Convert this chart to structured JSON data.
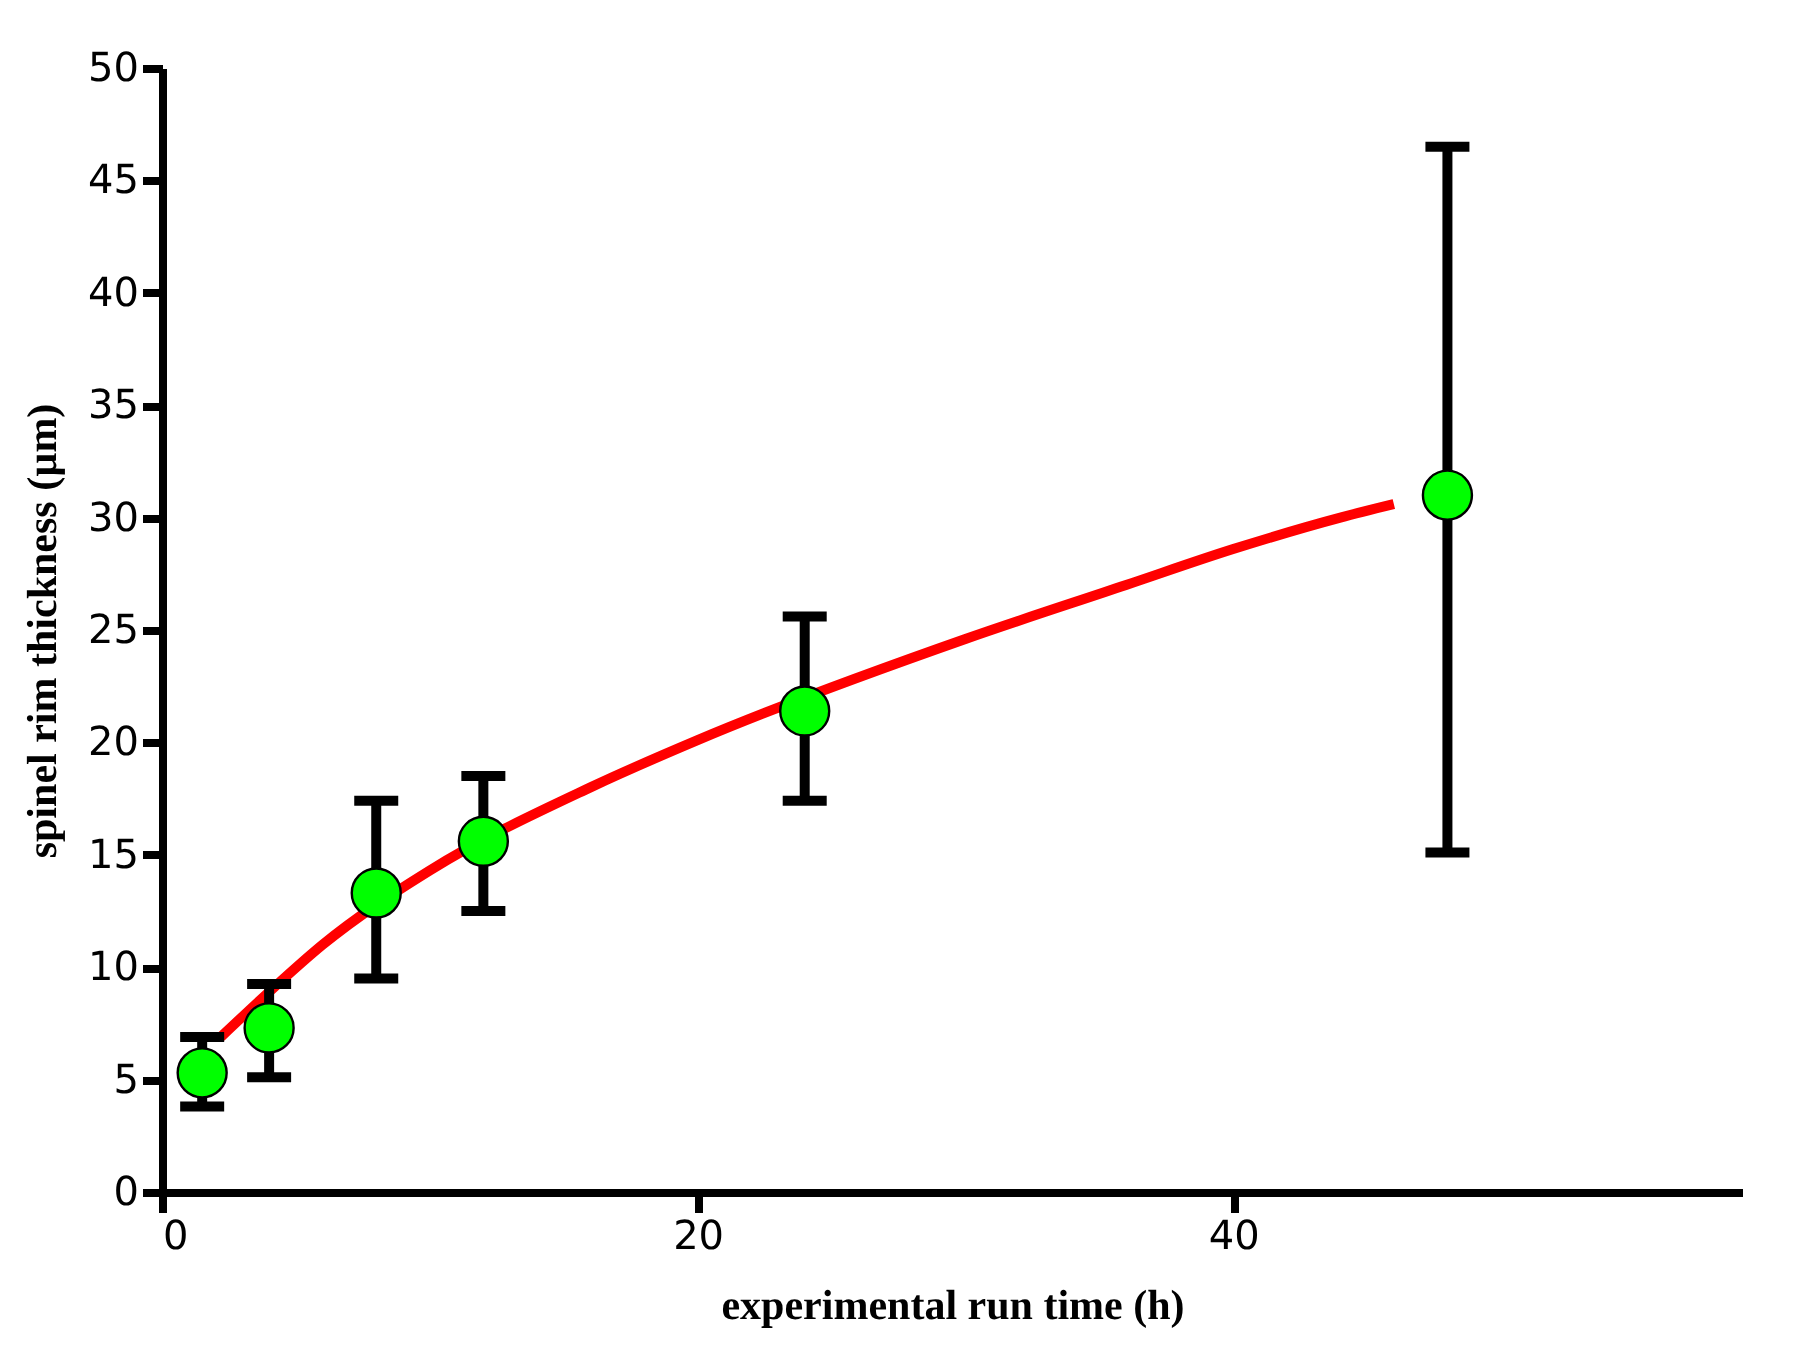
{
  "chart_data": {
    "type": "scatter",
    "xlabel": "experimental run time (h)",
    "ylabel": "spinel rim thickness (µm)",
    "xlim": [
      0,
      59
    ],
    "xticks": [
      0,
      20,
      40
    ],
    "ylim": [
      0,
      50
    ],
    "yticks": [
      0,
      5,
      10,
      15,
      20,
      25,
      30,
      35,
      40,
      45,
      50
    ],
    "grid": false,
    "series": [
      {
        "type": "line",
        "color": "#ff0000",
        "line_style": "solid",
        "x": [
          2.2,
          4,
          6,
          10,
          16,
          20,
          30,
          36,
          40,
          44,
          46
        ],
        "values": [
          6.9,
          8.9,
          11,
          14.3,
          18,
          20.1,
          24.6,
          27,
          28.6,
          30,
          30.6
        ]
      },
      {
        "color": "#00ff00",
        "marker": "circle",
        "x": [
          1.5,
          4,
          8,
          12,
          24,
          48
        ],
        "values": [
          5.3,
          7.3,
          13.3,
          15.6,
          21.4,
          31
        ],
        "errors": [
          [
            3.8,
            6.9
          ],
          [
            5.1,
            9.25
          ],
          [
            9.5,
            17.4
          ],
          [
            12.5,
            18.5
          ],
          [
            17.4,
            25.6
          ],
          [
            15.1,
            46.5
          ]
        ]
      }
    ]
  }
}
